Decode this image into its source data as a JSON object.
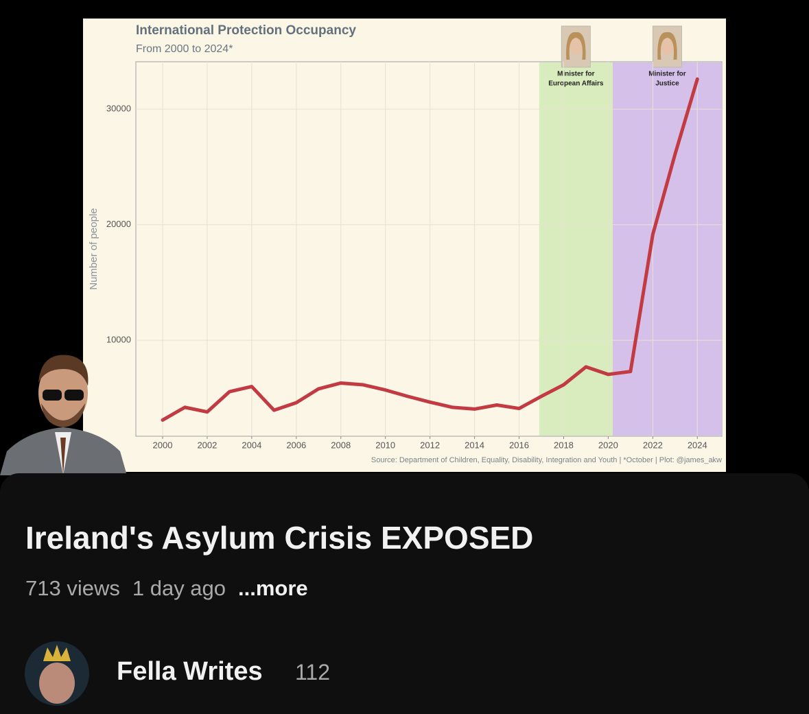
{
  "chart_data": {
    "type": "line",
    "title": "International Protection Occupancy",
    "subtitle": "From 2000 to 2024*",
    "y_label": "Number of people",
    "source": "Source: Department of Children, Equality, Disability, Integration and Youth | *October | Plot: @james_akw",
    "x": [
      2000,
      2001,
      2002,
      2003,
      2004,
      2005,
      2006,
      2007,
      2008,
      2009,
      2010,
      2011,
      2012,
      2013,
      2014,
      2015,
      2016,
      2017,
      2018,
      2019,
      2020,
      2021,
      2022,
      2023,
      2024
    ],
    "series": [
      {
        "color": "#c23a42",
        "values": [
          3100,
          4200,
          3800,
          5550,
          6000,
          3950,
          4600,
          5800,
          6300,
          6150,
          5700,
          5150,
          4650,
          4200,
          4050,
          4400,
          4100,
          5150,
          6150,
          7700,
          7050,
          7300,
          19150,
          26100,
          32600
        ]
      }
    ],
    "xlim": [
      1998.8,
      2025.1
    ],
    "ylim": [
      1700,
      34100
    ],
    "xticks": [
      2000,
      2002,
      2004,
      2006,
      2008,
      2010,
      2012,
      2014,
      2016,
      2018,
      2020,
      2022,
      2024
    ],
    "yticks": [
      10000,
      20000,
      30000
    ],
    "grid": true,
    "bands": [
      {
        "from": 2016.9,
        "to": 2020.2,
        "color": "#d9ecbd",
        "label_lines": [
          "Minister for",
          "European Affairs"
        ]
      },
      {
        "from": 2020.2,
        "to": 2025.1,
        "color": "#d5c0ea",
        "label_lines": [
          "Minister for",
          "Justice"
        ]
      }
    ]
  },
  "video": {
    "title": "Ireland's Asylum Crisis EXPOSED",
    "views": "713 views",
    "age": "1 day ago",
    "more": "...more",
    "channel": "Fella Writes",
    "subscribers": "112"
  }
}
